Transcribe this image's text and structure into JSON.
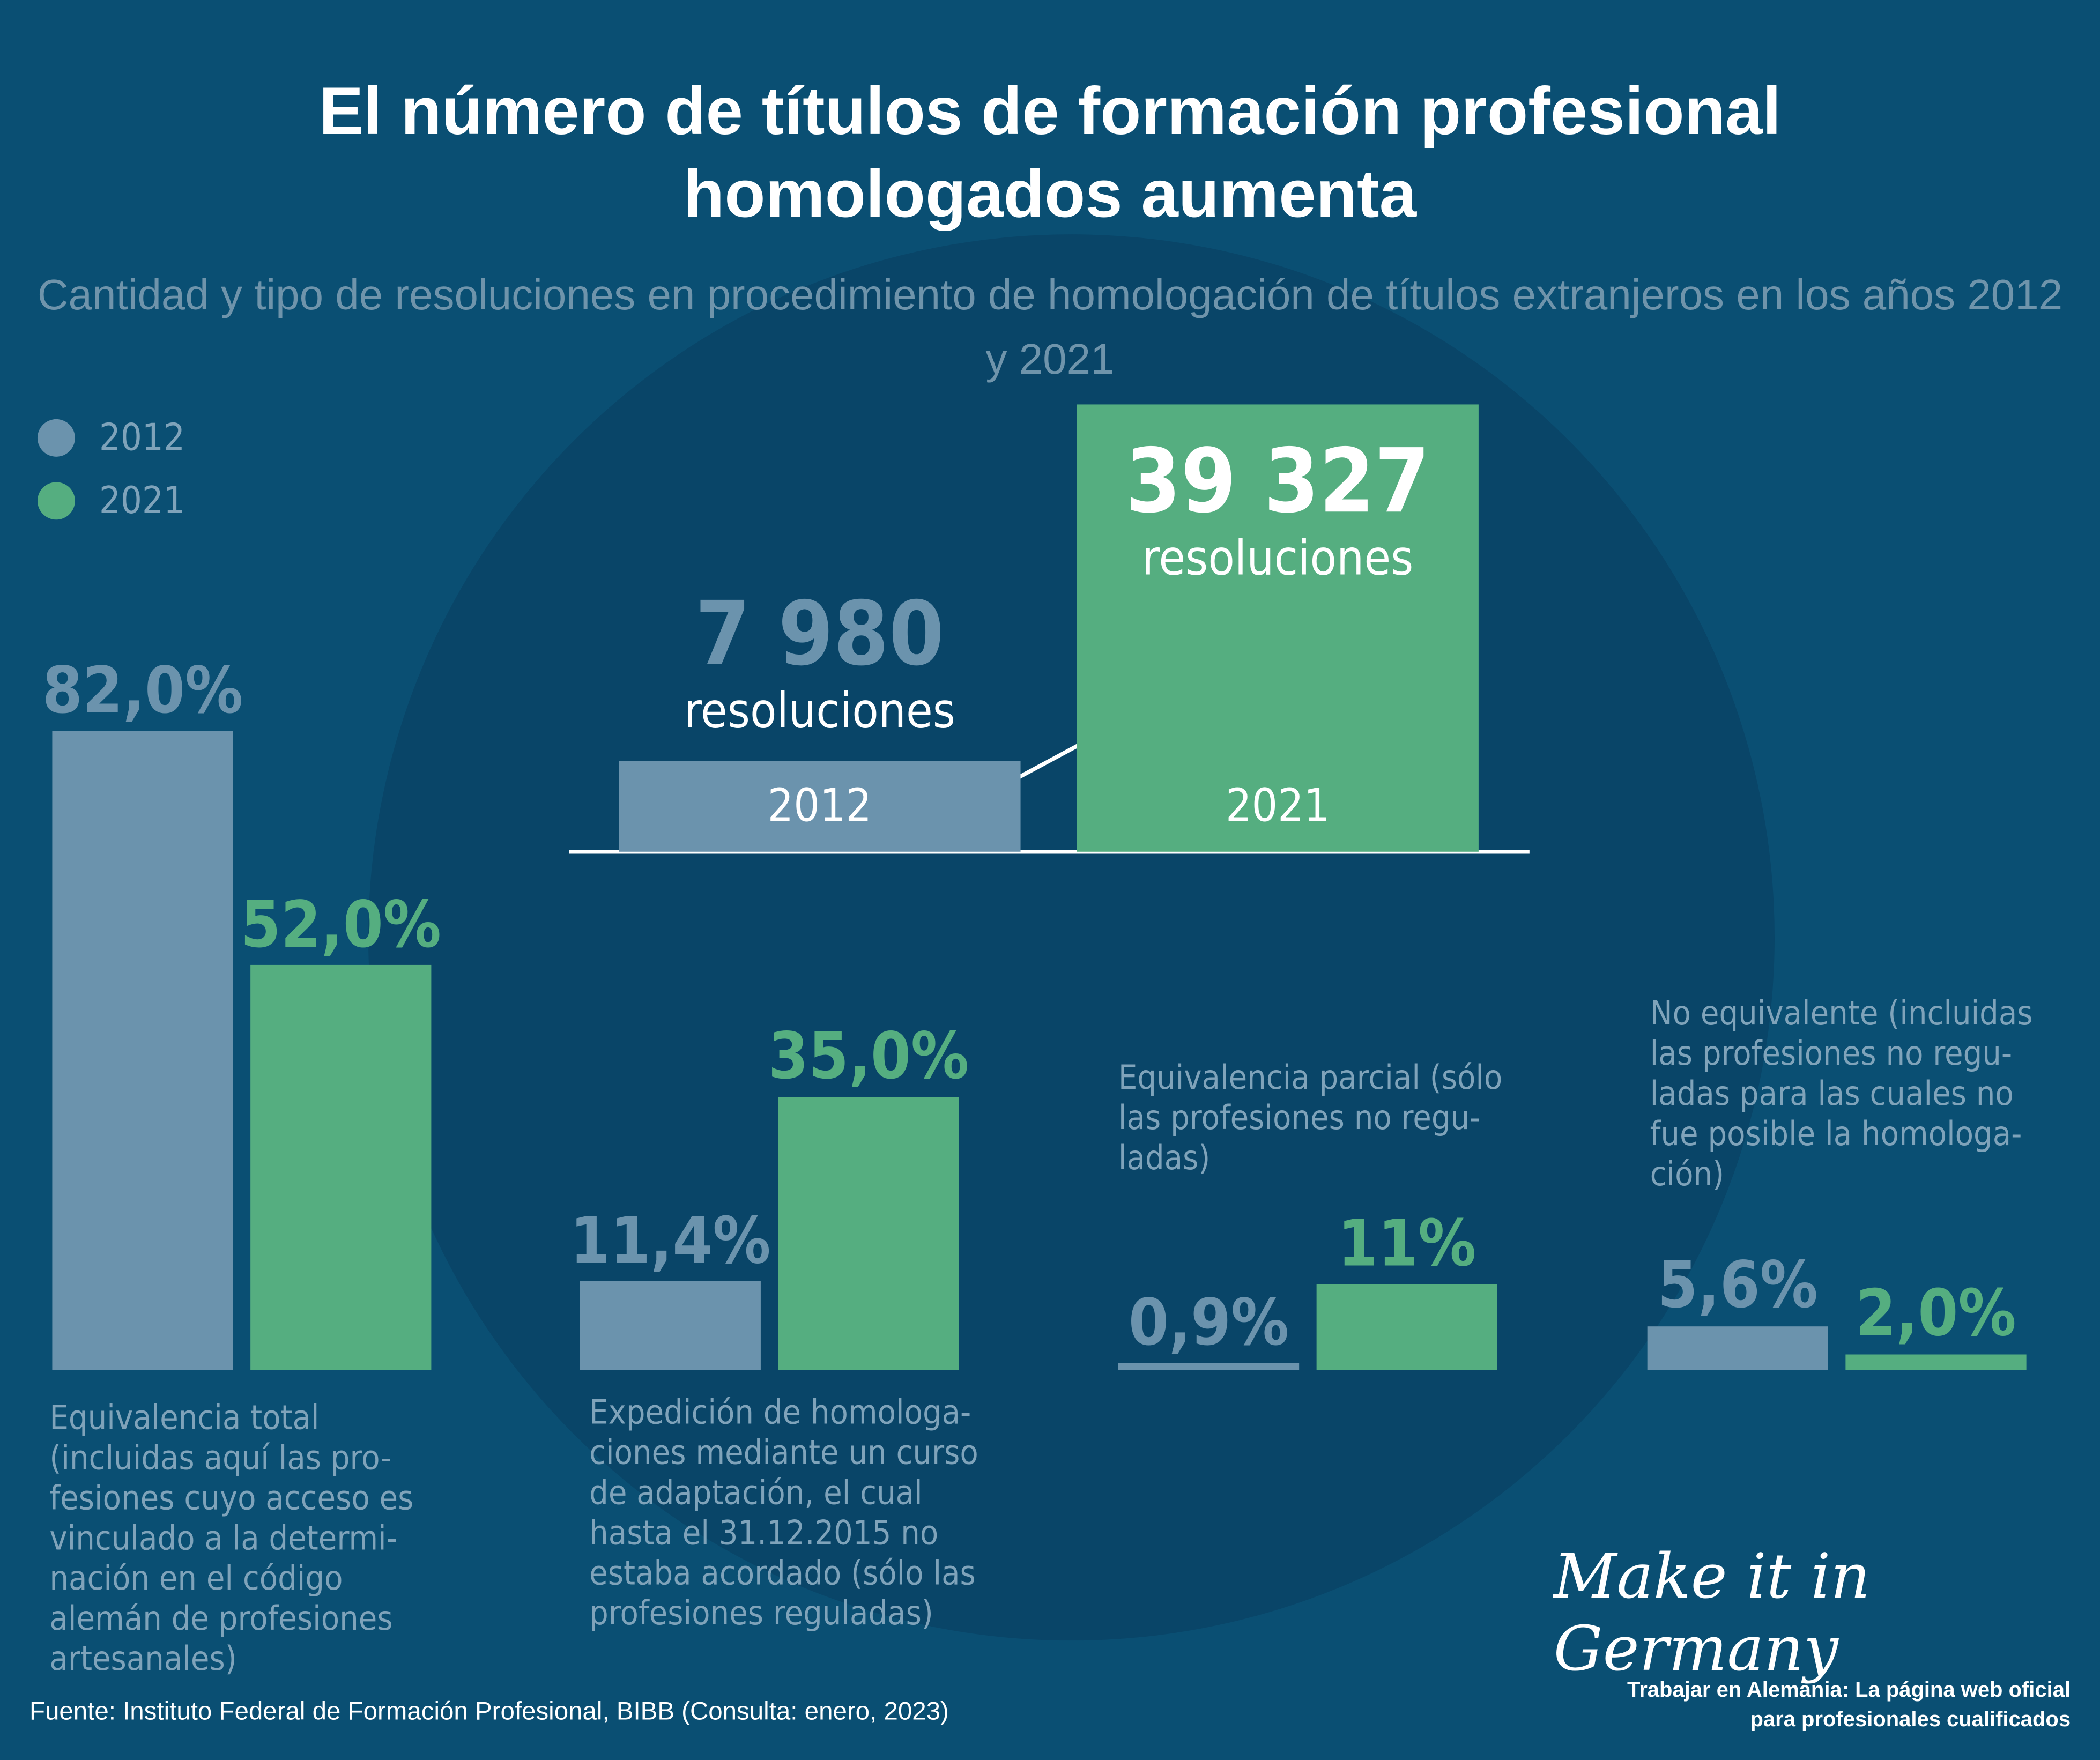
{
  "header": {
    "title": "El número de títulos de formación profesional\nhomologados aumenta",
    "subtitle": "Cantidad y tipo de resoluciones en procedimiento de homologación de títulos extranjeros en los años 2012 y 2021"
  },
  "chart_data": [
    {
      "type": "bar",
      "categories": [
        "2012",
        "2021"
      ],
      "values": [
        7980,
        39327
      ],
      "value_labels": [
        "7 980",
        "39 327"
      ],
      "value_unit": "resoluciones",
      "colors": [
        "#6b93ad",
        "#55ae80"
      ]
    },
    {
      "type": "grouped_bar",
      "categories": [
        "Equivalencia total\n(incluidas aquí las pro-\nfesiones cuyo acceso es\nvinculado a la determi-\nnación en el código\nalemán de profesiones\nartesanales)",
        "Expedición de homologa-\nciones mediante un curso\nde adaptación, el cual\nhasta el 31.12.2015 no\nestaba acordado (sólo las\nprofesiones reguladas)",
        "Equivalencia parcial (sólo\nlas profesiones no regu-\nladas)",
        "No equivalente (incluidas\nlas profesiones no regu-\nladas para las cuales no\nfue posible la homologa-\nción)"
      ],
      "series": [
        {
          "name": "2012",
          "color": "#6b93ad",
          "values": [
            82.0,
            11.4,
            0.9,
            5.6
          ],
          "value_labels": [
            "82,0%",
            "11,4%",
            "0,9%",
            "5,6%"
          ]
        },
        {
          "name": "2021",
          "color": "#55ae80",
          "values": [
            52.0,
            35.0,
            11,
            2.0
          ],
          "value_labels": [
            "52,0%",
            "35,0%",
            "11%",
            "2,0%"
          ]
        }
      ]
    }
  ],
  "footer": {
    "source": "Fuente:  Instituto Federal de Formación Profesional, BIBB (Consulta: enero, 2023)",
    "logo": "Make it in Germany",
    "tagline": "Trabajar en Alemania: La página web oficial\npara profesionales cualificados"
  }
}
